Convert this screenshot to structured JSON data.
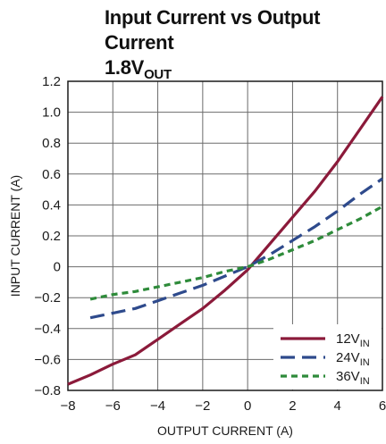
{
  "title": {
    "line1": "Input Current vs Output Current",
    "line2_main": "1.8V",
    "line2_sub": "OUT"
  },
  "chart_data": {
    "type": "line",
    "xlabel": "OUTPUT CURRENT (A)",
    "ylabel": "INPUT CURRENT (A)",
    "xlim": [
      -8,
      6
    ],
    "ylim": [
      -0.8,
      1.2
    ],
    "x_ticks": [
      -8,
      -6,
      -4,
      -2,
      0,
      2,
      4,
      6
    ],
    "x_tick_labels": [
      "−8",
      "−6",
      "−4",
      "−2",
      "0",
      "2",
      "4",
      "6"
    ],
    "y_ticks": [
      -0.8,
      -0.6,
      -0.4,
      -0.2,
      0,
      0.2,
      0.4,
      0.6,
      0.8,
      1.0,
      1.2
    ],
    "y_tick_labels": [
      "−0.8",
      "−0.6",
      "−0.4",
      "−0.2",
      "0",
      "0.2",
      "0.4",
      "0.6",
      "0.8",
      "1.0",
      "1.2"
    ],
    "grid": true,
    "legend_position": "bottom-right",
    "series": [
      {
        "name_main": "12V",
        "name_sub": "IN",
        "color": "#8b1a3a",
        "dash": "solid",
        "x": [
          -8,
          -7,
          -6,
          -5,
          -4,
          -3,
          -2,
          -1,
          0,
          1,
          2,
          3,
          4,
          5,
          6
        ],
        "y": [
          -0.76,
          -0.7,
          -0.63,
          -0.57,
          -0.47,
          -0.37,
          -0.27,
          -0.15,
          -0.02,
          0.15,
          0.32,
          0.49,
          0.68,
          0.89,
          1.1
        ]
      },
      {
        "name_main": "24V",
        "name_sub": "IN",
        "color": "#2e4a8c",
        "dash": "long",
        "x": [
          -7,
          -6,
          -5,
          -4,
          -3,
          -2,
          -1,
          0,
          1,
          2,
          3,
          4,
          5,
          6
        ],
        "y": [
          -0.33,
          -0.3,
          -0.27,
          -0.22,
          -0.17,
          -0.12,
          -0.06,
          0.0,
          0.08,
          0.17,
          0.26,
          0.36,
          0.47,
          0.57
        ]
      },
      {
        "name_main": "36V",
        "name_sub": "IN",
        "color": "#2e8b3a",
        "dash": "short",
        "x": [
          -7,
          -6,
          -5,
          -4,
          -3,
          -2,
          -1,
          0,
          1,
          2,
          3,
          4,
          5,
          6
        ],
        "y": [
          -0.21,
          -0.18,
          -0.16,
          -0.13,
          -0.1,
          -0.07,
          -0.03,
          0.0,
          0.05,
          0.11,
          0.17,
          0.24,
          0.31,
          0.39
        ]
      }
    ]
  }
}
